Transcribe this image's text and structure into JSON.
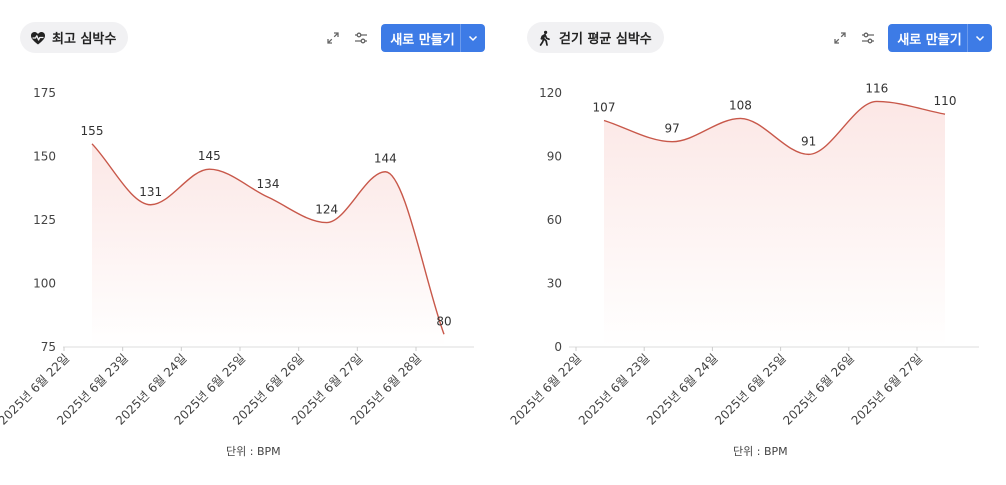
{
  "chart_data": [
    {
      "type": "area",
      "title": "최고 심박수",
      "title_icon": "heart-pulse-icon",
      "categories": [
        "2025년 6월 22일",
        "2025년 6월 23일",
        "2025년 6월 24일",
        "2025년 6월 25일",
        "2025년 6월 26일",
        "2025년 6월 27일",
        "2025년 6월 28일"
      ],
      "values": [
        155,
        131,
        145,
        134,
        124,
        144,
        80
      ],
      "ylim": [
        75,
        175
      ],
      "yticks": [
        75,
        100,
        125,
        150,
        175
      ],
      "unit_label": "단위 : BPM",
      "line_color": "#c8584a",
      "fill_color": "#fbe3e1",
      "grid": false
    },
    {
      "type": "area",
      "title": "걷기 평균 심박수",
      "title_icon": "walking-person-icon",
      "categories": [
        "2025년 6월 22일",
        "2025년 6월 23일",
        "2025년 6월 24일",
        "2025년 6월 25일",
        "2025년 6월 26일",
        "2025년 6월 27일"
      ],
      "values": [
        107,
        97,
        108,
        91,
        116,
        110
      ],
      "ylim": [
        0,
        120
      ],
      "yticks": [
        0,
        30,
        60,
        90,
        120
      ],
      "unit_label": "단위 : BPM",
      "line_color": "#c8584a",
      "fill_color": "#fbe3e1",
      "grid": false
    }
  ],
  "toolbar": {
    "new_button_label": "새로 만들기",
    "expand_icon": "expand-icon",
    "settings_icon": "sliders-icon",
    "dropdown_icon": "chevron-down-icon",
    "button_color": "#3d7be6"
  }
}
